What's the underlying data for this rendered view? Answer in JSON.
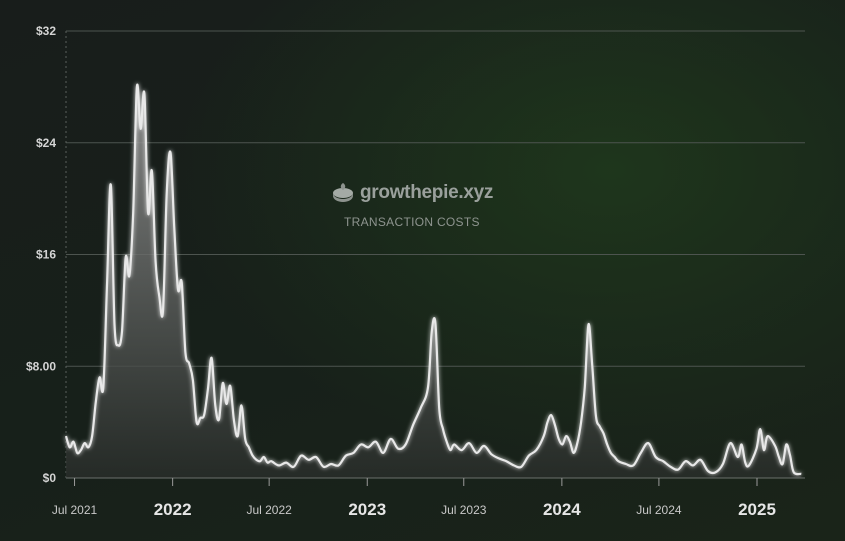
{
  "watermark": {
    "brand": "growthepie.xyz",
    "subtitle": "TRANSACTION COSTS"
  },
  "colors": {
    "line": "#e8e8e8",
    "area_top": "#9a9a9a",
    "area_bottom": "#2a2e2b",
    "grid": "#4d544f",
    "background": "#151a17"
  },
  "chart_data": {
    "type": "area",
    "title": "TRANSACTION COSTS",
    "xlabel": "",
    "ylabel": "",
    "ylim": [
      0,
      32
    ],
    "y_ticks": [
      0,
      8,
      16,
      24,
      32
    ],
    "y_tick_labels": [
      "$0",
      "$8.00",
      "$16",
      "$24",
      "$32"
    ],
    "x_ticks": [
      {
        "date": "2021-07-01",
        "label": "Jul 2021",
        "major": false
      },
      {
        "date": "2022-01-01",
        "label": "2022",
        "major": true
      },
      {
        "date": "2022-07-01",
        "label": "Jul 2022",
        "major": false
      },
      {
        "date": "2023-01-01",
        "label": "2023",
        "major": true
      },
      {
        "date": "2023-07-01",
        "label": "Jul 2023",
        "major": false
      },
      {
        "date": "2024-01-01",
        "label": "2024",
        "major": true
      },
      {
        "date": "2024-07-01",
        "label": "Jul 2024",
        "major": false
      },
      {
        "date": "2025-01-01",
        "label": "2025",
        "major": true
      }
    ],
    "xlim": [
      "2021-06-15",
      "2025-04-01"
    ],
    "grid": true,
    "series": [
      {
        "name": "",
        "x": [
          "2021-06-15",
          "2021-06-22",
          "2021-06-29",
          "2021-07-06",
          "2021-07-13",
          "2021-07-20",
          "2021-07-27",
          "2021-08-03",
          "2021-08-10",
          "2021-08-17",
          "2021-08-24",
          "2021-08-31",
          "2021-09-07",
          "2021-09-14",
          "2021-09-21",
          "2021-09-28",
          "2021-10-05",
          "2021-10-12",
          "2021-10-19",
          "2021-10-26",
          "2021-11-02",
          "2021-11-09",
          "2021-11-16",
          "2021-11-23",
          "2021-11-30",
          "2021-12-07",
          "2021-12-14",
          "2021-12-21",
          "2021-12-28",
          "2022-01-04",
          "2022-01-11",
          "2022-01-18",
          "2022-01-25",
          "2022-02-01",
          "2022-02-08",
          "2022-02-15",
          "2022-02-22",
          "2022-03-01",
          "2022-03-08",
          "2022-03-15",
          "2022-03-22",
          "2022-03-29",
          "2022-04-05",
          "2022-04-12",
          "2022-04-19",
          "2022-04-26",
          "2022-05-03",
          "2022-05-10",
          "2022-05-17",
          "2022-05-24",
          "2022-05-31",
          "2022-06-07",
          "2022-06-14",
          "2022-06-21",
          "2022-06-28",
          "2022-07-05",
          "2022-07-19",
          "2022-08-02",
          "2022-08-16",
          "2022-08-30",
          "2022-09-13",
          "2022-09-27",
          "2022-10-11",
          "2022-10-25",
          "2022-11-08",
          "2022-11-22",
          "2022-12-06",
          "2022-12-20",
          "2023-01-03",
          "2023-01-17",
          "2023-01-31",
          "2023-02-14",
          "2023-02-28",
          "2023-03-14",
          "2023-03-28",
          "2023-04-11",
          "2023-04-25",
          "2023-05-02",
          "2023-05-09",
          "2023-05-16",
          "2023-05-23",
          "2023-05-30",
          "2023-06-06",
          "2023-06-13",
          "2023-06-27",
          "2023-07-11",
          "2023-07-25",
          "2023-08-08",
          "2023-08-22",
          "2023-09-05",
          "2023-09-19",
          "2023-10-03",
          "2023-10-17",
          "2023-10-31",
          "2023-11-14",
          "2023-11-28",
          "2023-12-05",
          "2023-12-12",
          "2023-12-19",
          "2023-12-26",
          "2024-01-02",
          "2024-01-09",
          "2024-01-16",
          "2024-01-23",
          "2024-01-30",
          "2024-02-06",
          "2024-02-13",
          "2024-02-20",
          "2024-02-27",
          "2024-03-05",
          "2024-03-12",
          "2024-03-19",
          "2024-03-26",
          "2024-04-02",
          "2024-04-09",
          "2024-04-16",
          "2024-04-30",
          "2024-05-14",
          "2024-05-28",
          "2024-06-11",
          "2024-06-25",
          "2024-07-09",
          "2024-07-23",
          "2024-08-06",
          "2024-08-20",
          "2024-09-03",
          "2024-09-17",
          "2024-10-01",
          "2024-10-15",
          "2024-10-29",
          "2024-11-12",
          "2024-11-26",
          "2024-12-03",
          "2024-12-10",
          "2024-12-17",
          "2024-12-31",
          "2025-01-07",
          "2025-01-14",
          "2025-01-21",
          "2025-02-04",
          "2025-02-11",
          "2025-02-18",
          "2025-02-25",
          "2025-03-04",
          "2025-03-11",
          "2025-03-25"
        ],
        "values": [
          3.0,
          2.2,
          2.6,
          1.8,
          2.0,
          2.5,
          2.2,
          3.0,
          5.5,
          7.2,
          6.5,
          14.0,
          21.0,
          11.0,
          9.5,
          10.5,
          15.8,
          14.5,
          19.0,
          28.0,
          25.0,
          27.5,
          19.0,
          22.0,
          15.5,
          13.0,
          12.0,
          20.5,
          23.3,
          18.0,
          13.5,
          14.0,
          9.0,
          8.2,
          7.0,
          4.0,
          4.3,
          4.5,
          6.3,
          8.6,
          5.2,
          4.2,
          6.8,
          5.3,
          6.6,
          4.1,
          3.0,
          5.2,
          2.8,
          2.2,
          1.6,
          1.3,
          1.2,
          1.5,
          1.1,
          1.2,
          0.9,
          1.1,
          0.8,
          1.6,
          1.3,
          1.5,
          0.8,
          1.0,
          0.9,
          1.6,
          1.8,
          2.4,
          2.2,
          2.6,
          1.8,
          2.8,
          2.1,
          2.4,
          3.8,
          5.0,
          6.5,
          10.5,
          11.0,
          5.0,
          3.5,
          2.6,
          2.0,
          2.4,
          2.0,
          2.5,
          1.8,
          2.3,
          1.7,
          1.4,
          1.2,
          0.9,
          0.8,
          1.6,
          2.0,
          3.0,
          4.0,
          4.5,
          3.8,
          2.8,
          2.4,
          3.0,
          2.6,
          1.8,
          2.5,
          4.0,
          6.5,
          11.0,
          8.0,
          4.4,
          3.7,
          3.2,
          2.4,
          1.8,
          1.5,
          1.2,
          1.0,
          0.9,
          1.8,
          2.5,
          1.5,
          1.2,
          0.8,
          0.6,
          1.2,
          0.9,
          1.3,
          0.5,
          0.4,
          1.0,
          2.5,
          1.5,
          2.4,
          1.1,
          0.9,
          2.1,
          3.5,
          2.0,
          3.0,
          2.3,
          1.5,
          1.0,
          2.4,
          1.6,
          0.4,
          0.3
        ]
      }
    ]
  }
}
